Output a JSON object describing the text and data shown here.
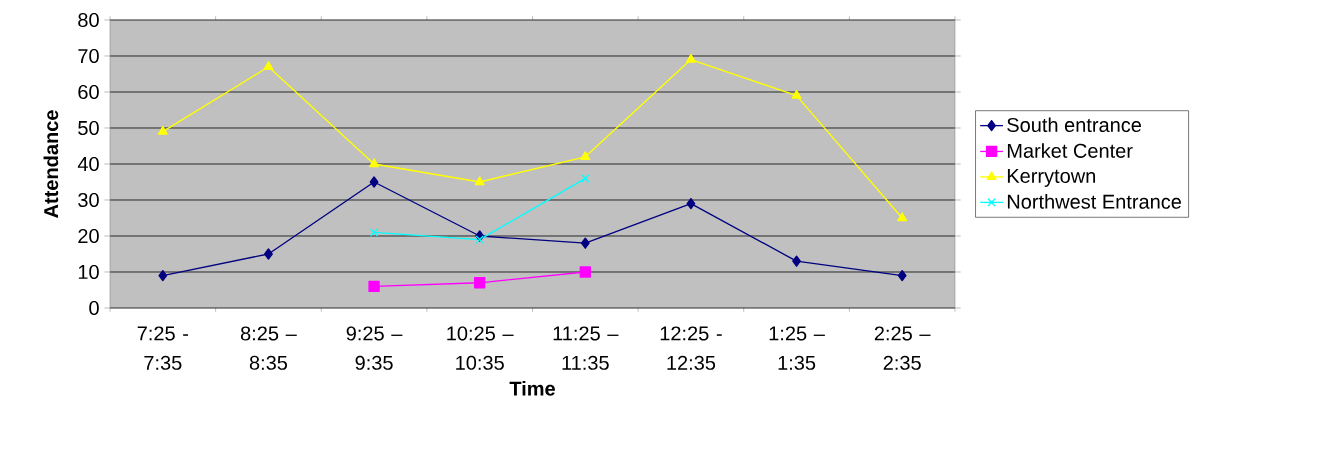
{
  "chart_data": {
    "type": "line",
    "xlabel": "Time",
    "ylabel": "Attendance",
    "categories": [
      "7:25 - 7:35",
      "8:25 – 8:35",
      "9:25 – 9:35",
      "10:25 – 10:35",
      "11:25 – 11:35",
      "12:25 - 12:35",
      "1:25 – 1:35",
      "2:25 – 2:35"
    ],
    "series": [
      {
        "name": "South entrance",
        "color": "#000080",
        "marker": "diamond",
        "values": [
          9,
          15,
          35,
          20,
          18,
          29,
          13,
          9
        ]
      },
      {
        "name": "Market Center",
        "color": "#ff00ff",
        "marker": "square",
        "values": [
          null,
          null,
          6,
          7,
          10,
          null,
          null,
          null
        ]
      },
      {
        "name": "Kerrytown",
        "color": "#ffff00",
        "marker": "triangle",
        "values": [
          49,
          67,
          40,
          35,
          42,
          69,
          59,
          25
        ]
      },
      {
        "name": "Northwest Entrance",
        "color": "#00ffff",
        "marker": "cross",
        "values": [
          null,
          null,
          21,
          19,
          36,
          null,
          null,
          null
        ]
      }
    ],
    "ylim": [
      0,
      80
    ],
    "yticks": [
      0,
      10,
      20,
      30,
      40,
      50,
      60,
      70,
      80
    ],
    "grid": "y",
    "legend": "right",
    "line_style": "solid"
  }
}
